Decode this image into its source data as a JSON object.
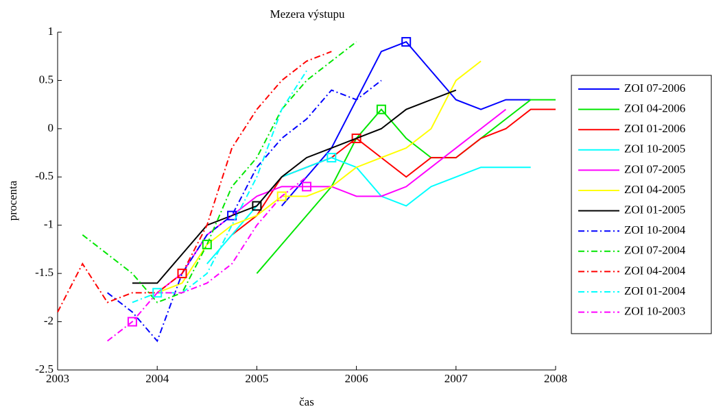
{
  "chart_data": {
    "type": "line",
    "title": "Mezera výstupu",
    "x_label": "čas",
    "y_label": "procenta",
    "x": [
      2003,
      2003.25,
      2003.5,
      2003.75,
      2004,
      2004.25,
      2004.5,
      2004.75,
      2005,
      2005.25,
      2005.5,
      2005.75,
      2006,
      2006.25,
      2006.5,
      2006.75,
      2007,
      2007.25,
      2007.5,
      2007.75,
      2008
    ],
    "xlim": [
      2003,
      2008
    ],
    "xticks": [
      2003,
      2004,
      2005,
      2006,
      2007,
      2008
    ],
    "ylim": [
      -2.5,
      1
    ],
    "yticks": [
      -2.5,
      -2,
      -1.5,
      -1,
      -0.5,
      0,
      0.5,
      1
    ],
    "grid": false,
    "legend": "outside-right",
    "series": [
      {
        "name": "ZOI 07-2006",
        "color": "#0000ff",
        "line_style": "solid",
        "marker_x": 2006.5,
        "values": [
          null,
          null,
          null,
          null,
          null,
          null,
          null,
          null,
          null,
          -0.8,
          -0.5,
          -0.2,
          0.3,
          0.8,
          0.9,
          0.6,
          0.3,
          0.2,
          0.3,
          0.3,
          null
        ]
      },
      {
        "name": "ZOI 04-2006",
        "color": "#00e600",
        "line_style": "solid",
        "marker_x": 2006.25,
        "values": [
          null,
          null,
          null,
          null,
          null,
          null,
          null,
          null,
          -1.5,
          -1.2,
          -0.9,
          -0.6,
          -0.1,
          0.2,
          -0.1,
          -0.3,
          -0.3,
          -0.1,
          0.1,
          0.3,
          0.3
        ]
      },
      {
        "name": "ZOI 01-2006",
        "color": "#ff0000",
        "line_style": "solid",
        "marker_x": 2006,
        "values": [
          null,
          null,
          null,
          null,
          null,
          null,
          null,
          -1.1,
          -0.9,
          -0.5,
          -0.4,
          -0.3,
          -0.1,
          -0.3,
          -0.5,
          -0.3,
          -0.3,
          -0.1,
          0,
          0.2,
          0.2
        ]
      },
      {
        "name": "ZOI 10-2005",
        "color": "#00ffff",
        "line_style": "solid",
        "marker_x": 2005.75,
        "values": [
          null,
          null,
          null,
          null,
          null,
          null,
          -1.4,
          -1.1,
          -0.8,
          -0.5,
          -0.4,
          -0.3,
          -0.4,
          -0.7,
          -0.8,
          -0.6,
          -0.5,
          -0.4,
          -0.4,
          -0.4,
          null
        ]
      },
      {
        "name": "ZOI 07-2005",
        "color": "#ff00ff",
        "line_style": "solid",
        "marker_x": 2005.5,
        "values": [
          null,
          null,
          null,
          null,
          -1.7,
          -1.5,
          -1.1,
          -0.9,
          -0.7,
          -0.6,
          -0.6,
          -0.6,
          -0.7,
          -0.7,
          -0.6,
          -0.4,
          -0.2,
          0,
          0.2,
          null,
          null
        ]
      },
      {
        "name": "ZOI 04-2005",
        "color": "#ffff00",
        "line_style": "solid",
        "marker_x": 2005.25,
        "values": [
          null,
          null,
          null,
          null,
          -1.7,
          -1.6,
          -1.2,
          -1.0,
          -0.9,
          -0.7,
          -0.7,
          -0.6,
          -0.4,
          -0.3,
          -0.2,
          0,
          0.5,
          0.7,
          null,
          null,
          null
        ]
      },
      {
        "name": "ZOI 01-2005",
        "color": "#000000",
        "line_style": "solid",
        "marker_x": 2005,
        "values": [
          null,
          null,
          null,
          -1.6,
          -1.6,
          -1.3,
          -1.0,
          -0.9,
          -0.8,
          -0.5,
          -0.3,
          -0.2,
          -0.1,
          0,
          0.2,
          0.3,
          0.4,
          null,
          null,
          null,
          null
        ]
      },
      {
        "name": "ZOI 10-2004",
        "color": "#0000ff",
        "line_style": "dashdot",
        "marker_x": 2004.75,
        "values": [
          null,
          null,
          -1.7,
          -1.9,
          -2.2,
          -1.5,
          -1.1,
          -0.9,
          -0.4,
          -0.1,
          0.1,
          0.4,
          0.3,
          0.5,
          null,
          null,
          null,
          null,
          null,
          null,
          null
        ]
      },
      {
        "name": "ZOI 07-2004",
        "color": "#00e600",
        "line_style": "dashdot",
        "marker_x": 2004.5,
        "values": [
          null,
          -1.1,
          -1.3,
          -1.5,
          -1.8,
          -1.7,
          -1.2,
          -0.6,
          -0.3,
          0.2,
          0.5,
          0.7,
          0.9,
          null,
          null,
          null,
          null,
          null,
          null,
          null,
          null
        ]
      },
      {
        "name": "ZOI 04-2004",
        "color": "#ff0000",
        "line_style": "dashdot",
        "marker_x": 2004.25,
        "values": [
          -1.9,
          -1.4,
          -1.8,
          -1.7,
          -1.7,
          -1.5,
          -1.0,
          -0.2,
          0.2,
          0.5,
          0.7,
          0.8,
          null,
          null,
          null,
          null,
          null,
          null,
          null,
          null,
          null
        ]
      },
      {
        "name": "ZOI 01-2004",
        "color": "#00ffff",
        "line_style": "dashdot",
        "marker_x": 2004,
        "values": [
          null,
          null,
          null,
          -1.8,
          -1.7,
          -1.7,
          -1.5,
          -1.0,
          -0.5,
          0.2,
          0.6,
          null,
          null,
          null,
          null,
          null,
          null,
          null,
          null,
          null,
          null
        ]
      },
      {
        "name": "ZOI 10-2003",
        "color": "#ff00ff",
        "line_style": "dashdot",
        "marker_x": 2003.75,
        "values": [
          null,
          null,
          -2.2,
          -2.0,
          -1.7,
          -1.7,
          -1.6,
          -1.4,
          -1.0,
          -0.7,
          -0.5,
          null,
          null,
          null,
          null,
          null,
          null,
          null,
          null,
          null,
          null
        ]
      }
    ]
  }
}
